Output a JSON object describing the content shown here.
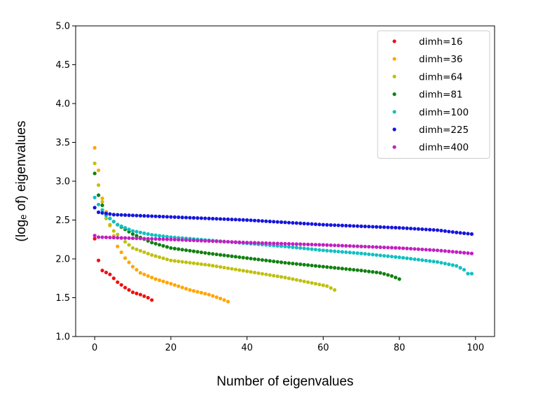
{
  "chart_data": {
    "type": "scatter",
    "title": "",
    "xlabel": "Number of eigenvalues",
    "ylabel": "(logₑ of) eigenvalues",
    "xlim": [
      -5,
      105
    ],
    "ylim": [
      1.0,
      5.0
    ],
    "xticks": [
      0,
      20,
      40,
      60,
      80,
      100
    ],
    "yticks": [
      1.0,
      1.5,
      2.0,
      2.5,
      3.0,
      3.5,
      4.0,
      4.5,
      5.0
    ],
    "xtick_labels": [
      "0",
      "20",
      "40",
      "60",
      "80",
      "100"
    ],
    "ytick_labels": [
      "1.0",
      "1.5",
      "2.0",
      "2.5",
      "3.0",
      "3.5",
      "4.0",
      "4.5",
      "5.0"
    ],
    "grid": false,
    "legend_position": "top-right",
    "series": [
      {
        "name": "dimh=16",
        "color": "#ee1111",
        "n": 16,
        "anchors": [
          [
            0,
            2.26
          ],
          [
            1,
            1.98
          ],
          [
            2,
            1.85
          ],
          [
            4,
            1.8
          ],
          [
            6,
            1.7
          ],
          [
            8,
            1.63
          ],
          [
            10,
            1.57
          ],
          [
            12,
            1.54
          ],
          [
            14,
            1.5
          ],
          [
            15,
            1.47
          ]
        ]
      },
      {
        "name": "dimh=36",
        "color": "#ffa500",
        "n": 36,
        "anchors": [
          [
            0,
            3.43
          ],
          [
            1,
            3.14
          ],
          [
            2,
            2.78
          ],
          [
            4,
            2.43
          ],
          [
            6,
            2.16
          ],
          [
            8,
            2.01
          ],
          [
            10,
            1.9
          ],
          [
            12,
            1.82
          ],
          [
            16,
            1.74
          ],
          [
            20,
            1.68
          ],
          [
            25,
            1.6
          ],
          [
            30,
            1.54
          ],
          [
            33,
            1.49
          ],
          [
            35,
            1.45
          ]
        ]
      },
      {
        "name": "dimh=64",
        "color": "#c0c010",
        "n": 64,
        "anchors": [
          [
            0,
            3.23
          ],
          [
            1,
            2.95
          ],
          [
            3,
            2.52
          ],
          [
            5,
            2.36
          ],
          [
            8,
            2.22
          ],
          [
            10,
            2.14
          ],
          [
            15,
            2.05
          ],
          [
            20,
            1.98
          ],
          [
            30,
            1.92
          ],
          [
            40,
            1.84
          ],
          [
            50,
            1.76
          ],
          [
            58,
            1.68
          ],
          [
            61,
            1.65
          ],
          [
            63,
            1.6
          ]
        ]
      },
      {
        "name": "dimh=81",
        "color": "#108010",
        "n": 81,
        "anchors": [
          [
            0,
            3.1
          ],
          [
            1,
            2.82
          ],
          [
            3,
            2.56
          ],
          [
            6,
            2.44
          ],
          [
            10,
            2.32
          ],
          [
            15,
            2.21
          ],
          [
            20,
            2.14
          ],
          [
            30,
            2.07
          ],
          [
            40,
            2.01
          ],
          [
            50,
            1.95
          ],
          [
            60,
            1.9
          ],
          [
            70,
            1.85
          ],
          [
            75,
            1.82
          ],
          [
            78,
            1.78
          ],
          [
            80,
            1.74
          ]
        ]
      },
      {
        "name": "dimh=100",
        "color": "#11c0c0",
        "n": 100,
        "anchors": [
          [
            0,
            2.79
          ],
          [
            1,
            2.7
          ],
          [
            3,
            2.56
          ],
          [
            6,
            2.44
          ],
          [
            10,
            2.36
          ],
          [
            15,
            2.31
          ],
          [
            20,
            2.28
          ],
          [
            30,
            2.24
          ],
          [
            40,
            2.2
          ],
          [
            50,
            2.16
          ],
          [
            60,
            2.11
          ],
          [
            70,
            2.07
          ],
          [
            80,
            2.02
          ],
          [
            90,
            1.96
          ],
          [
            95,
            1.91
          ],
          [
            97,
            1.86
          ],
          [
            98,
            1.81
          ]
        ]
      },
      {
        "name": "dimh=225",
        "color": "#1515dd",
        "n": 100,
        "anchors": [
          [
            0,
            2.66
          ],
          [
            1,
            2.6
          ],
          [
            5,
            2.57
          ],
          [
            20,
            2.54
          ],
          [
            40,
            2.5
          ],
          [
            60,
            2.44
          ],
          [
            80,
            2.4
          ],
          [
            90,
            2.37
          ],
          [
            95,
            2.34
          ],
          [
            99,
            2.32
          ]
        ]
      },
      {
        "name": "dimh=400",
        "color": "#c020c0",
        "n": 100,
        "anchors": [
          [
            0,
            2.3
          ],
          [
            1,
            2.28
          ],
          [
            20,
            2.25
          ],
          [
            40,
            2.21
          ],
          [
            60,
            2.18
          ],
          [
            80,
            2.14
          ],
          [
            90,
            2.11
          ],
          [
            99,
            2.07
          ]
        ]
      }
    ]
  }
}
